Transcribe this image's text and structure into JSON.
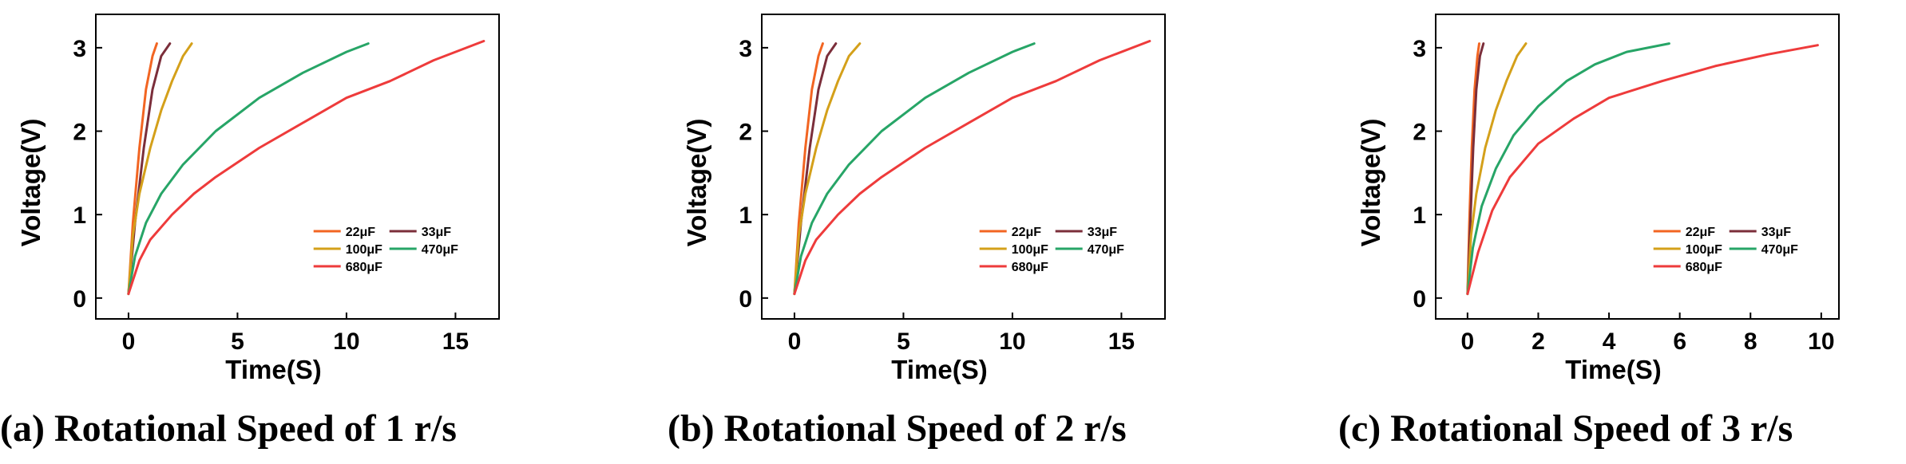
{
  "chart_data": [
    {
      "type": "line",
      "caption": "(a) Rotational Speed of 1 r/s",
      "xlabel": "Time(S)",
      "ylabel": "Voltage(V)",
      "xlim": [
        -1.5,
        17
      ],
      "ylim": [
        -0.25,
        3.4
      ],
      "xticks": [
        0,
        5,
        10,
        15
      ],
      "yticks": [
        0,
        1,
        2,
        3
      ],
      "legend_position": "lower-right",
      "series": [
        {
          "name": "22μF",
          "color": "#f26522",
          "x": [
            0,
            0.2,
            0.5,
            0.8,
            1.1,
            1.3
          ],
          "y": [
            0.05,
            0.9,
            1.8,
            2.5,
            2.9,
            3.05
          ]
        },
        {
          "name": "33μF",
          "color": "#7b2e3a",
          "x": [
            0,
            0.3,
            0.7,
            1.1,
            1.5,
            1.9
          ],
          "y": [
            0.05,
            0.9,
            1.8,
            2.5,
            2.9,
            3.05
          ]
        },
        {
          "name": "100μF",
          "color": "#d4a01a",
          "x": [
            0,
            0.2,
            0.5,
            1.0,
            1.5,
            2.0,
            2.5,
            2.9
          ],
          "y": [
            0.05,
            0.75,
            1.25,
            1.8,
            2.25,
            2.6,
            2.9,
            3.05
          ]
        },
        {
          "name": "470μF",
          "color": "#27a567",
          "x": [
            0,
            0.3,
            0.8,
            1.5,
            2.5,
            4,
            6,
            8,
            10,
            11
          ],
          "y": [
            0.05,
            0.5,
            0.9,
            1.25,
            1.6,
            2.0,
            2.4,
            2.7,
            2.95,
            3.05
          ]
        },
        {
          "name": "680μF",
          "color": "#ee3b3b",
          "x": [
            0,
            0.5,
            1,
            2,
            3,
            4,
            6,
            8,
            10,
            12,
            14,
            16.3
          ],
          "y": [
            0.05,
            0.45,
            0.7,
            1.0,
            1.25,
            1.45,
            1.8,
            2.1,
            2.4,
            2.6,
            2.85,
            3.08
          ]
        }
      ]
    },
    {
      "type": "line",
      "caption": "(b) Rotational Speed of 2 r/s",
      "xlabel": "Time(S)",
      "ylabel": "Voltage(V)",
      "xlim": [
        -1.5,
        17
      ],
      "ylim": [
        -0.25,
        3.4
      ],
      "xticks": [
        0,
        5,
        10,
        15
      ],
      "yticks": [
        0,
        1,
        2,
        3
      ],
      "legend_position": "lower-right",
      "series": [
        {
          "name": "22μF",
          "color": "#f26522",
          "x": [
            0,
            0.2,
            0.5,
            0.8,
            1.1,
            1.3
          ],
          "y": [
            0.05,
            0.9,
            1.8,
            2.5,
            2.9,
            3.05
          ]
        },
        {
          "name": "33μF",
          "color": "#7b2e3a",
          "x": [
            0,
            0.3,
            0.7,
            1.1,
            1.5,
            1.9
          ],
          "y": [
            0.05,
            0.9,
            1.8,
            2.5,
            2.9,
            3.05
          ]
        },
        {
          "name": "100μF",
          "color": "#d4a01a",
          "x": [
            0,
            0.2,
            0.5,
            1.0,
            1.5,
            2.0,
            2.5,
            3.0
          ],
          "y": [
            0.05,
            0.75,
            1.25,
            1.8,
            2.25,
            2.6,
            2.9,
            3.05
          ]
        },
        {
          "name": "470μF",
          "color": "#27a567",
          "x": [
            0,
            0.3,
            0.8,
            1.5,
            2.5,
            4,
            6,
            8,
            10,
            11
          ],
          "y": [
            0.05,
            0.5,
            0.9,
            1.25,
            1.6,
            2.0,
            2.4,
            2.7,
            2.95,
            3.05
          ]
        },
        {
          "name": "680μF",
          "color": "#ee3b3b",
          "x": [
            0,
            0.5,
            1,
            2,
            3,
            4,
            6,
            8,
            10,
            12,
            14,
            16.3
          ],
          "y": [
            0.05,
            0.45,
            0.7,
            1.0,
            1.25,
            1.45,
            1.8,
            2.1,
            2.4,
            2.6,
            2.85,
            3.08
          ]
        }
      ]
    },
    {
      "type": "line",
      "caption": "(c) Rotational Speed of 3 r/s",
      "xlabel": "Time(S)",
      "ylabel": "Voltage(V)",
      "xlim": [
        -0.9,
        10.5
      ],
      "ylim": [
        -0.25,
        3.4
      ],
      "xticks": [
        0,
        2,
        4,
        6,
        8,
        10
      ],
      "yticks": [
        0,
        1,
        2,
        3
      ],
      "legend_position": "lower-right",
      "series": [
        {
          "name": "22μF",
          "color": "#f26522",
          "x": [
            0,
            0.05,
            0.12,
            0.2,
            0.28,
            0.33
          ],
          "y": [
            0.05,
            0.9,
            1.8,
            2.5,
            2.9,
            3.05
          ]
        },
        {
          "name": "33μF",
          "color": "#7b2e3a",
          "x": [
            0,
            0.08,
            0.16,
            0.25,
            0.35,
            0.45
          ],
          "y": [
            0.05,
            0.9,
            1.8,
            2.5,
            2.9,
            3.05
          ]
        },
        {
          "name": "100μF",
          "color": "#d4a01a",
          "x": [
            0,
            0.1,
            0.25,
            0.5,
            0.8,
            1.1,
            1.4,
            1.65
          ],
          "y": [
            0.05,
            0.75,
            1.25,
            1.8,
            2.25,
            2.6,
            2.9,
            3.05
          ]
        },
        {
          "name": "470μF",
          "color": "#27a567",
          "x": [
            0,
            0.15,
            0.4,
            0.8,
            1.3,
            2.0,
            2.8,
            3.6,
            4.5,
            5.7
          ],
          "y": [
            0.05,
            0.6,
            1.1,
            1.55,
            1.95,
            2.3,
            2.6,
            2.8,
            2.95,
            3.05
          ]
        },
        {
          "name": "680μF",
          "color": "#ee3b3b",
          "x": [
            0,
            0.3,
            0.7,
            1.2,
            2.0,
            3.0,
            4.0,
            5.5,
            7.0,
            8.5,
            9.9
          ],
          "y": [
            0.05,
            0.55,
            1.05,
            1.45,
            1.85,
            2.15,
            2.4,
            2.6,
            2.78,
            2.92,
            3.03
          ]
        }
      ]
    }
  ]
}
